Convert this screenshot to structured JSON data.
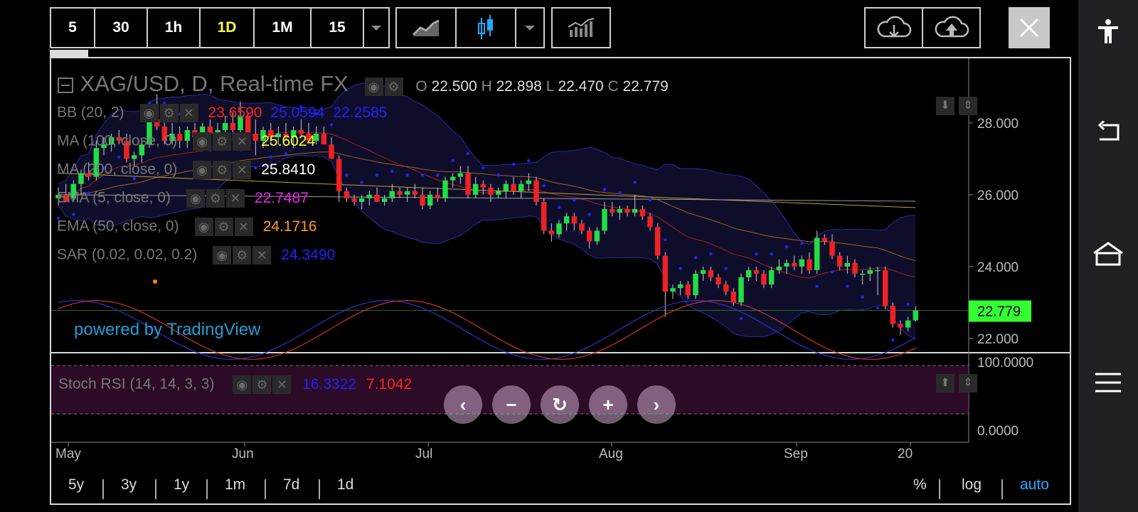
{
  "toolbar": {
    "intervals": [
      "5",
      "30",
      "1h",
      "1D",
      "1M",
      "15"
    ],
    "active_interval": "1D"
  },
  "legend": {
    "symbol": "XAG/USD, D, Real-time FX",
    "ohlc": {
      "o_label": "O",
      "o": "22.500",
      "h_label": "H",
      "h": "22.898",
      "l_label": "L",
      "l": "22.470",
      "c_label": "C",
      "c": "22.779"
    },
    "indicators": [
      {
        "name": "BB (20, 2)",
        "values": [
          {
            "v": "23.6590",
            "color": "#ff2020"
          },
          {
            "v": "25.0594",
            "color": "#2020ff"
          },
          {
            "v": "22.2585",
            "color": "#2020ff"
          }
        ]
      },
      {
        "name": "MA (100, close, 0)",
        "values": [
          {
            "v": "25.6024",
            "color": "#ffff33"
          }
        ]
      },
      {
        "name": "MA (200, close, 0)",
        "values": [
          {
            "v": "25.8410",
            "color": "#ffffff"
          }
        ]
      },
      {
        "name": "EMA (5, close, 0)",
        "values": [
          {
            "v": "22.7487",
            "color": "#ee22ee"
          }
        ]
      },
      {
        "name": "EMA (50, close, 0)",
        "values": [
          {
            "v": "24.1716",
            "color": "#ff9922"
          }
        ]
      },
      {
        "name": "SAR (0.02, 0.02, 0.2)",
        "values": [
          {
            "v": "24.3490",
            "color": "#2222ff"
          }
        ]
      }
    ],
    "stoch": {
      "name": "Stoch RSI (14, 14, 3, 3)",
      "k": "16.3322",
      "d": "7.1042"
    }
  },
  "watermark": "powered by TradingView",
  "price_axis": {
    "labels": [
      "28.000",
      "26.000",
      "24.000",
      "22.000"
    ],
    "current": "22.779",
    "current_color": "#33ff33"
  },
  "stoch_axis": {
    "labels": [
      "100.0000",
      "0.0000"
    ]
  },
  "time_axis": {
    "labels": [
      "May",
      "Jun",
      "Jul",
      "Aug",
      "Sep",
      "20"
    ]
  },
  "timeframes": [
    "5y",
    "3y",
    "1y",
    "1m",
    "7d",
    "1d"
  ],
  "scale_options": [
    "%",
    "log",
    "auto"
  ],
  "active_scale": "auto",
  "chart_data": {
    "type": "candlestick",
    "symbol": "XAG/USD",
    "interval": "D",
    "ylim": [
      21.6,
      29.8
    ],
    "candles_ohlc": [
      [
        25.9,
        26.2,
        25.7,
        26.0
      ],
      [
        26.0,
        26.3,
        25.8,
        25.8
      ],
      [
        25.9,
        26.4,
        25.8,
        26.3
      ],
      [
        26.3,
        26.7,
        26.0,
        26.6
      ],
      [
        26.6,
        26.9,
        26.4,
        26.5
      ],
      [
        26.5,
        27.5,
        26.4,
        27.3
      ],
      [
        27.3,
        27.6,
        27.1,
        27.4
      ],
      [
        27.4,
        27.7,
        27.2,
        27.6
      ],
      [
        27.6,
        27.8,
        27.4,
        27.5
      ],
      [
        27.5,
        27.7,
        26.9,
        27.0
      ],
      [
        27.0,
        27.2,
        26.8,
        27.1
      ],
      [
        27.1,
        27.5,
        26.9,
        27.4
      ],
      [
        27.4,
        28.2,
        27.3,
        28.1
      ],
      [
        28.1,
        28.8,
        27.8,
        27.9
      ],
      [
        27.9,
        28.2,
        27.4,
        27.5
      ],
      [
        27.5,
        28.0,
        27.4,
        27.7
      ],
      [
        27.7,
        27.9,
        27.3,
        27.5
      ],
      [
        27.5,
        27.9,
        27.3,
        27.8
      ],
      [
        27.8,
        28.0,
        27.5,
        27.6
      ],
      [
        27.6,
        28.0,
        27.5,
        27.9
      ],
      [
        27.9,
        28.1,
        27.6,
        27.7
      ],
      [
        27.7,
        28.0,
        27.4,
        27.8
      ],
      [
        27.8,
        28.2,
        27.7,
        28.0
      ],
      [
        28.0,
        28.3,
        27.7,
        27.8
      ],
      [
        27.8,
        28.6,
        27.6,
        28.2
      ],
      [
        28.2,
        28.3,
        27.6,
        27.7
      ],
      [
        27.7,
        28.1,
        27.1,
        27.5
      ],
      [
        27.5,
        27.9,
        27.3,
        27.8
      ],
      [
        27.8,
        28.0,
        27.4,
        27.6
      ],
      [
        27.6,
        27.9,
        27.4,
        27.7
      ],
      [
        27.7,
        28.0,
        27.5,
        27.6
      ],
      [
        27.6,
        27.9,
        27.3,
        27.8
      ],
      [
        27.8,
        28.1,
        27.6,
        27.7
      ],
      [
        27.7,
        28.0,
        27.5,
        27.5
      ],
      [
        27.5,
        27.9,
        27.4,
        27.7
      ],
      [
        27.7,
        27.9,
        27.4,
        27.4
      ],
      [
        27.4,
        27.6,
        27.0,
        27.0
      ],
      [
        27.0,
        27.1,
        25.8,
        26.1
      ],
      [
        26.1,
        26.2,
        25.8,
        25.9
      ],
      [
        25.9,
        26.0,
        25.7,
        25.8
      ],
      [
        25.8,
        26.0,
        25.6,
        25.9
      ],
      [
        25.9,
        26.1,
        25.7,
        26.0
      ],
      [
        26.0,
        26.2,
        25.8,
        25.8
      ],
      [
        25.8,
        26.0,
        25.7,
        25.9
      ],
      [
        25.9,
        26.3,
        25.8,
        26.1
      ],
      [
        26.1,
        26.2,
        25.9,
        26.0
      ],
      [
        26.0,
        26.2,
        25.8,
        26.1
      ],
      [
        26.1,
        26.3,
        25.9,
        26.0
      ],
      [
        26.0,
        26.2,
        25.6,
        25.7
      ],
      [
        25.7,
        26.1,
        25.6,
        26.0
      ],
      [
        26.0,
        26.2,
        25.8,
        25.9
      ],
      [
        25.9,
        26.5,
        25.8,
        26.4
      ],
      [
        26.4,
        26.6,
        26.2,
        26.5
      ],
      [
        26.5,
        26.8,
        26.3,
        26.6
      ],
      [
        26.6,
        26.8,
        25.9,
        26.0
      ],
      [
        26.0,
        26.5,
        25.9,
        26.3
      ],
      [
        26.3,
        26.4,
        26.0,
        26.2
      ],
      [
        26.2,
        26.3,
        25.8,
        26.0
      ],
      [
        26.0,
        26.2,
        25.9,
        26.1
      ],
      [
        26.1,
        26.4,
        25.9,
        26.3
      ],
      [
        26.3,
        26.5,
        26.0,
        26.1
      ],
      [
        26.1,
        26.4,
        25.9,
        26.3
      ],
      [
        26.3,
        26.6,
        26.1,
        26.4
      ],
      [
        26.4,
        26.5,
        25.7,
        25.8
      ],
      [
        25.8,
        25.9,
        24.9,
        25.0
      ],
      [
        25.0,
        25.2,
        24.7,
        24.9
      ],
      [
        24.9,
        25.3,
        24.8,
        25.2
      ],
      [
        25.2,
        25.5,
        25.0,
        25.4
      ],
      [
        25.4,
        25.5,
        25.0,
        25.2
      ],
      [
        25.2,
        25.3,
        24.9,
        25.0
      ],
      [
        25.0,
        25.1,
        24.5,
        24.7
      ],
      [
        24.7,
        25.1,
        24.6,
        25.0
      ],
      [
        25.0,
        25.8,
        24.9,
        25.6
      ],
      [
        25.6,
        25.8,
        25.4,
        25.5
      ],
      [
        25.5,
        25.7,
        25.3,
        25.6
      ],
      [
        25.6,
        25.7,
        25.4,
        25.5
      ],
      [
        25.5,
        26.0,
        25.4,
        25.6
      ],
      [
        25.6,
        25.7,
        25.3,
        25.4
      ],
      [
        25.4,
        25.5,
        25.0,
        25.1
      ],
      [
        25.1,
        25.2,
        24.2,
        24.3
      ],
      [
        24.3,
        24.4,
        22.6,
        23.3
      ],
      [
        23.3,
        23.5,
        23.1,
        23.4
      ],
      [
        23.4,
        23.6,
        23.2,
        23.5
      ],
      [
        23.5,
        23.6,
        23.1,
        23.2
      ],
      [
        23.2,
        23.9,
        23.1,
        23.8
      ],
      [
        23.8,
        24.0,
        23.6,
        23.9
      ],
      [
        23.9,
        24.0,
        23.6,
        23.7
      ],
      [
        23.7,
        23.8,
        23.4,
        23.5
      ],
      [
        23.5,
        23.6,
        23.2,
        23.3
      ],
      [
        23.3,
        23.4,
        22.9,
        23.0
      ],
      [
        23.0,
        23.8,
        22.9,
        23.7
      ],
      [
        23.7,
        24.0,
        23.6,
        23.9
      ],
      [
        23.9,
        24.0,
        23.6,
        23.8
      ],
      [
        23.8,
        23.9,
        23.4,
        23.5
      ],
      [
        23.5,
        24.0,
        23.4,
        23.9
      ],
      [
        23.9,
        24.2,
        23.8,
        24.0
      ],
      [
        24.0,
        24.2,
        23.8,
        24.1
      ],
      [
        24.1,
        24.3,
        23.9,
        24.0
      ],
      [
        24.0,
        24.3,
        23.8,
        24.2
      ],
      [
        24.2,
        24.4,
        23.8,
        23.9
      ],
      [
        23.9,
        25.0,
        23.8,
        24.8
      ],
      [
        24.8,
        24.9,
        24.6,
        24.7
      ],
      [
        24.7,
        24.9,
        24.2,
        24.3
      ],
      [
        24.3,
        24.4,
        23.9,
        24.0
      ],
      [
        24.0,
        24.3,
        23.8,
        24.1
      ],
      [
        24.1,
        24.2,
        23.7,
        23.8
      ],
      [
        23.8,
        23.9,
        23.5,
        23.8
      ],
      [
        23.8,
        24.0,
        23.6,
        23.9
      ],
      [
        23.9,
        24.0,
        23.2,
        23.9
      ],
      [
        23.9,
        24.0,
        22.8,
        22.9
      ],
      [
        22.9,
        23.0,
        22.3,
        22.4
      ],
      [
        22.4,
        22.5,
        22.1,
        22.3
      ],
      [
        22.3,
        22.6,
        22.2,
        22.5
      ],
      [
        22.5,
        22.9,
        22.47,
        22.779
      ]
    ],
    "last_close": 22.779,
    "stoch_rsi": {
      "k": 16.3322,
      "d": 7.1042,
      "range": [
        0,
        100
      ]
    }
  }
}
